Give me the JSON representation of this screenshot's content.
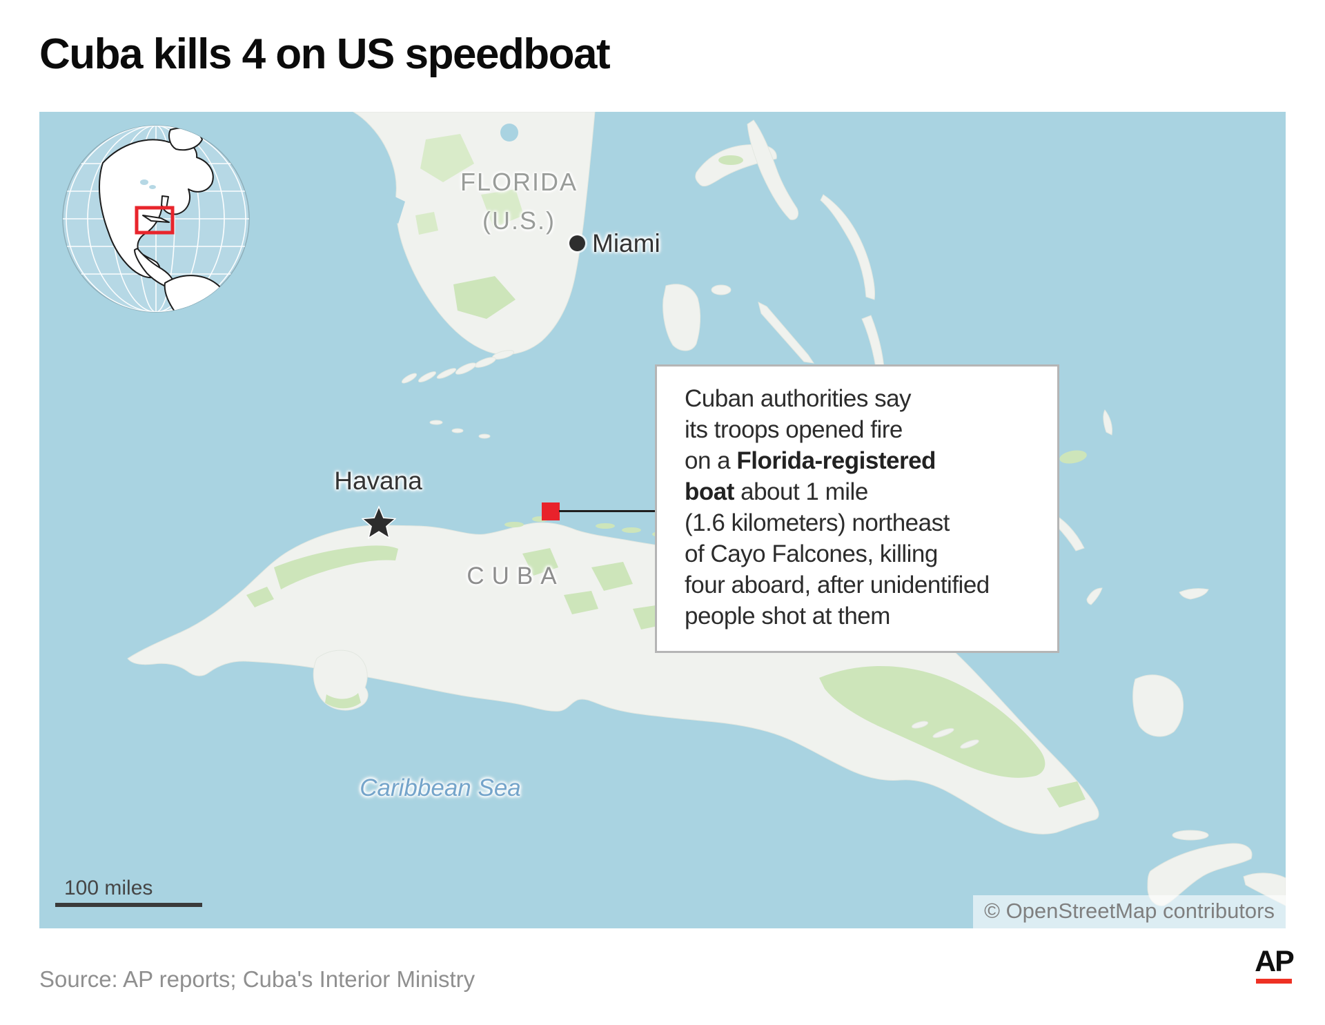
{
  "title": "Cuba kills 4 on US speedboat",
  "map": {
    "region_labels": {
      "florida": "FLORIDA",
      "florida_sub": "(U.S.)",
      "cuba": "CUBA",
      "caribbean_sea": "Caribbean Sea"
    },
    "cities": {
      "miami": "Miami",
      "havana": "Havana"
    },
    "callout": {
      "lines": [
        [
          {
            "text": "Cuban authorities say",
            "bold": false
          }
        ],
        [
          {
            "text": "its troops opened fire",
            "bold": false
          }
        ],
        [
          {
            "text": "on a ",
            "bold": false
          },
          {
            "text": "Florida-registered",
            "bold": true
          }
        ],
        [
          {
            "text": "boat",
            "bold": true
          },
          {
            "text": " about 1 mile",
            "bold": false
          }
        ],
        [
          {
            "text": "(1.6 kilometers) northeast",
            "bold": false
          }
        ],
        [
          {
            "text": "of Cayo Falcones, killing",
            "bold": false
          }
        ],
        [
          {
            "text": "four aboard, after unidentified",
            "bold": false
          }
        ],
        [
          {
            "text": "people shot at them",
            "bold": false
          }
        ]
      ]
    },
    "scale_label": "100 miles",
    "attribution": "© OpenStreetMap contributors"
  },
  "footer": {
    "source": "Source: AP reports; Cuba's Interior Ministry",
    "ap_logo": "AP"
  },
  "icons": {
    "incident_marker": "red-square-icon",
    "havana_star": "star-icon",
    "miami_dot": "city-dot-icon",
    "globe": "globe-locator-icon"
  },
  "colors": {
    "ocean": "#a9d3e1",
    "land": "#f0f2ee",
    "vegetation": "#cde5ba",
    "marker_red": "#e8222b",
    "ap_red": "#ee3124",
    "region_label_gray": "#999c99",
    "sea_label_blue": "#74a4ca"
  }
}
